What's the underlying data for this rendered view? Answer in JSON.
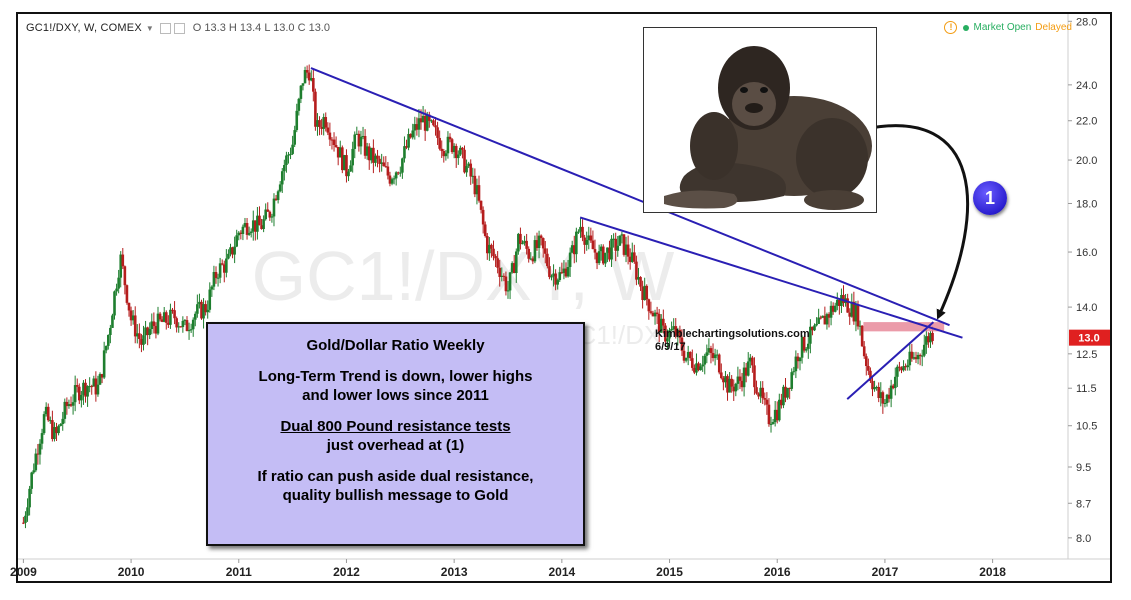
{
  "header": {
    "symbol": "GC1!/DXY, W, COMEX",
    "ohlc": "O 13.3 H 13.4 L 13.0 C 13.0"
  },
  "market": {
    "open_label": "Market Open",
    "delayed_label": "Delayed",
    "colors": {
      "open": "#27ae60",
      "delayed": "#f39c12"
    }
  },
  "watermark": {
    "symbol": "GC1!/DXY, W",
    "sub": "GC1!/DXY"
  },
  "price_tag": "13.0",
  "credit": {
    "site": "Kimblechartingsolutions.com",
    "date": "6/9/17"
  },
  "badge_label": "1",
  "gorilla_image": {
    "alt": "gorilla",
    "icon": "gorilla-icon"
  },
  "note": {
    "title": "Gold/Dollar Ratio Weekly",
    "line1a": "Long-Term Trend is down, lower highs",
    "line1b": "and lower lows since 2011",
    "line2a": "Dual 800 Pound resistance tests",
    "line2b": "just overhead at (1)",
    "line3a": "If ratio can push aside dual resistance,",
    "line3b": "quality bullish message to Gold"
  },
  "chart_data": {
    "type": "candlestick",
    "symbol": "GC1!/DXY",
    "interval": "W",
    "exchange": "COMEX",
    "x_ticks": [
      "2009",
      "2010",
      "2011",
      "2012",
      "2013",
      "2014",
      "2015",
      "2016",
      "2017",
      "2018"
    ],
    "y_ticks": [
      8.0,
      8.7,
      9.5,
      10.5,
      11.5,
      12.5,
      14.0,
      16.0,
      18.0,
      20.0,
      22.0,
      24.0,
      28.0
    ],
    "y_scale": "log",
    "ylim": [
      7.6,
      28.5
    ],
    "xlim": [
      2008.95,
      2018.7
    ],
    "last_price": 13.0,
    "colors": {
      "up": "#1e7e2e",
      "down": "#b51d1d",
      "trendline": "#2a1fb4",
      "resistance": "#e88a9a",
      "price_tag": "#e02020"
    },
    "path_points": [
      [
        2009.0,
        8.3
      ],
      [
        2009.1,
        9.6
      ],
      [
        2009.2,
        10.8
      ],
      [
        2009.3,
        10.2
      ],
      [
        2009.4,
        11.0
      ],
      [
        2009.5,
        11.4
      ],
      [
        2009.6,
        11.6
      ],
      [
        2009.7,
        11.5
      ],
      [
        2009.8,
        13.3
      ],
      [
        2009.9,
        15.8
      ],
      [
        2010.0,
        13.6
      ],
      [
        2010.1,
        12.8
      ],
      [
        2010.2,
        13.4
      ],
      [
        2010.3,
        13.5
      ],
      [
        2010.4,
        13.7
      ],
      [
        2010.5,
        13.3
      ],
      [
        2010.6,
        13.8
      ],
      [
        2010.7,
        14.0
      ],
      [
        2010.8,
        15.3
      ],
      [
        2010.9,
        15.6
      ],
      [
        2011.0,
        16.8
      ],
      [
        2011.1,
        17.2
      ],
      [
        2011.2,
        17.0
      ],
      [
        2011.3,
        17.7
      ],
      [
        2011.4,
        19.5
      ],
      [
        2011.5,
        20.8
      ],
      [
        2011.6,
        24.5
      ],
      [
        2011.66,
        24.9
      ],
      [
        2011.72,
        21.5
      ],
      [
        2011.8,
        22.2
      ],
      [
        2011.9,
        20.8
      ],
      [
        2012.0,
        19.5
      ],
      [
        2012.1,
        21.2
      ],
      [
        2012.2,
        20.3
      ],
      [
        2012.3,
        19.8
      ],
      [
        2012.4,
        19.2
      ],
      [
        2012.5,
        19.8
      ],
      [
        2012.6,
        21.2
      ],
      [
        2012.7,
        22.1
      ],
      [
        2012.8,
        21.5
      ],
      [
        2012.9,
        20.7
      ],
      [
        2013.0,
        20.8
      ],
      [
        2013.1,
        19.8
      ],
      [
        2013.2,
        18.7
      ],
      [
        2013.3,
        16.3
      ],
      [
        2013.4,
        15.6
      ],
      [
        2013.5,
        14.6
      ],
      [
        2013.55,
        15.4
      ],
      [
        2013.6,
        16.6
      ],
      [
        2013.7,
        15.9
      ],
      [
        2013.8,
        16.3
      ],
      [
        2013.9,
        15.2
      ],
      [
        2014.0,
        15.1
      ],
      [
        2014.1,
        16.0
      ],
      [
        2014.17,
        17.1
      ],
      [
        2014.25,
        16.3
      ],
      [
        2014.35,
        15.8
      ],
      [
        2014.45,
        16.1
      ],
      [
        2014.55,
        16.4
      ],
      [
        2014.65,
        15.7
      ],
      [
        2014.75,
        14.6
      ],
      [
        2014.85,
        13.8
      ],
      [
        2014.95,
        13.1
      ],
      [
        2015.05,
        13.2
      ],
      [
        2015.15,
        12.4
      ],
      [
        2015.25,
        12.2
      ],
      [
        2015.35,
        12.5
      ],
      [
        2015.45,
        12.3
      ],
      [
        2015.55,
        11.5
      ],
      [
        2015.65,
        11.7
      ],
      [
        2015.75,
        12.2
      ],
      [
        2015.85,
        11.2
      ],
      [
        2015.92,
        10.7
      ],
      [
        2016.0,
        10.9
      ],
      [
        2016.1,
        11.6
      ],
      [
        2016.2,
        12.6
      ],
      [
        2016.3,
        13.0
      ],
      [
        2016.4,
        13.4
      ],
      [
        2016.5,
        13.9
      ],
      [
        2016.6,
        14.3
      ],
      [
        2016.7,
        13.9
      ],
      [
        2016.75,
        13.7
      ],
      [
        2016.8,
        12.6
      ],
      [
        2016.85,
        12.0
      ],
      [
        2016.93,
        11.3
      ],
      [
        2017.0,
        11.1
      ],
      [
        2017.1,
        11.9
      ],
      [
        2017.2,
        12.2
      ],
      [
        2017.3,
        12.4
      ],
      [
        2017.38,
        12.9
      ],
      [
        2017.45,
        13.2
      ]
    ],
    "trendlines": [
      {
        "from": [
          2011.67,
          25.0
        ],
        "to": [
          2017.6,
          13.4
        ]
      },
      {
        "from": [
          2014.17,
          17.4
        ],
        "to": [
          2017.72,
          13.0
        ]
      },
      {
        "from": [
          2016.65,
          11.2
        ],
        "to": [
          2017.45,
          13.5
        ]
      }
    ],
    "resistance_zone": {
      "x": [
        2016.8,
        2017.55
      ],
      "y": [
        13.2,
        13.5
      ]
    },
    "annotation_arrow": {
      "from": [
        2016.85,
        21.6
      ],
      "to": [
        2017.5,
        13.7
      ]
    }
  }
}
